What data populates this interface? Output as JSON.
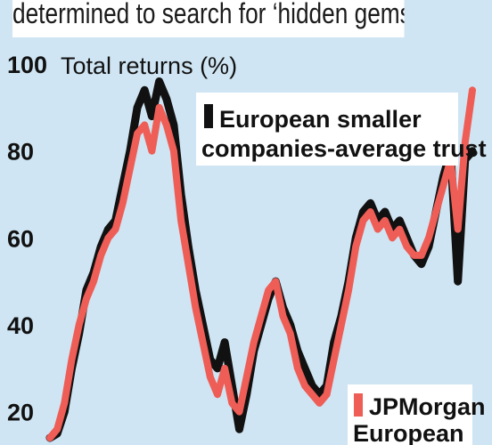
{
  "headline": "determined to search for ‘hidden gems’",
  "chart_data": {
    "type": "line",
    "ylabel": "Total returns (%)",
    "ylim": [
      14,
      100
    ],
    "yticks": [
      20,
      40,
      60,
      80,
      100
    ],
    "grid": false,
    "series": [
      {
        "name": "European smaller companies-average trust",
        "color": "#111111",
        "values": [
          14,
          15,
          20,
          30,
          38,
          48,
          52,
          58,
          62,
          64,
          72,
          80,
          90,
          94,
          88,
          96,
          92,
          86,
          70,
          58,
          48,
          40,
          32,
          30,
          36,
          26,
          16,
          24,
          34,
          40,
          46,
          50,
          44,
          40,
          34,
          30,
          26,
          24,
          26,
          36,
          42,
          50,
          60,
          66,
          68,
          64,
          66,
          62,
          64,
          60,
          56,
          54,
          58,
          66,
          74,
          80,
          50,
          78,
          80
        ]
      },
      {
        "name": "JPMorgan European",
        "color": "#ee5d56",
        "values": [
          14,
          16,
          22,
          32,
          40,
          46,
          50,
          56,
          60,
          62,
          68,
          76,
          84,
          86,
          80,
          90,
          86,
          80,
          64,
          54,
          44,
          36,
          28,
          24,
          30,
          22,
          20,
          28,
          36,
          42,
          48,
          50,
          42,
          38,
          30,
          26,
          24,
          22,
          24,
          32,
          40,
          48,
          58,
          64,
          66,
          62,
          64,
          60,
          62,
          58,
          56,
          56,
          60,
          66,
          72,
          78,
          62,
          82,
          94
        ]
      }
    ]
  }
}
